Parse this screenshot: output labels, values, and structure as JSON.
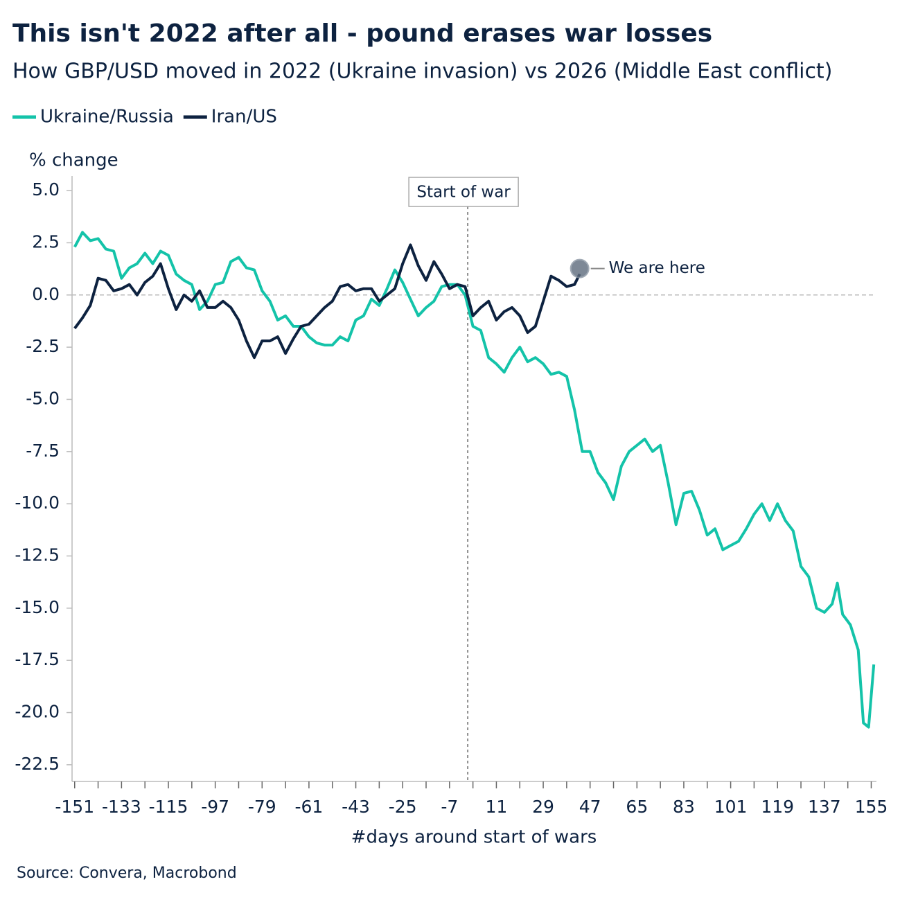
{
  "chart_data": {
    "type": "line",
    "title": "This isn't 2022 after all - pound erases war losses",
    "subtitle": "How GBP/USD moved in 2022 (Ukraine invasion) vs 2026 (Middle East conflict)",
    "y_axis_label": "% change",
    "x_axis_label": "#days around start of wars",
    "source": "Source: Convera, Macrobond",
    "annotations": [
      {
        "text": "Start of war",
        "x": 0
      },
      {
        "text": "We are here",
        "x": 43
      }
    ],
    "xlim": [
      -152,
      157
    ],
    "ylim": [
      -23.3,
      5.7
    ],
    "xticks": [
      -151,
      -133,
      -115,
      -97,
      -79,
      -61,
      -43,
      -25,
      -7,
      11,
      29,
      47,
      65,
      83,
      101,
      119,
      137,
      155
    ],
    "yticks": [
      {
        "value": 5,
        "label": "5.0"
      },
      2.5,
      {
        "value": 0,
        "label": "0.0"
      },
      -2.5,
      {
        "value": -5,
        "label": "-5.0"
      },
      -7.5,
      {
        "value": -10,
        "label": "-10.0"
      },
      -12.5,
      {
        "value": -15,
        "label": "-15.0"
      },
      -17.5,
      {
        "value": -20,
        "label": "-20.0"
      },
      -22.5
    ],
    "zero_line": true,
    "series": [
      {
        "name": "Ukraine/Russia",
        "color": "#14c3a9",
        "x": [
          -151,
          -148,
          -145,
          -142,
          -139,
          -136,
          -133,
          -130,
          -127,
          -124,
          -121,
          -118,
          -115,
          -112,
          -109,
          -106,
          -103,
          -100,
          -97,
          -94,
          -91,
          -88,
          -85,
          -82,
          -79,
          -76,
          -73,
          -70,
          -67,
          -64,
          -61,
          -58,
          -55,
          -52,
          -49,
          -46,
          -43,
          -40,
          -37,
          -34,
          -31,
          -28,
          -25,
          -22,
          -19,
          -16,
          -13,
          -10,
          -7,
          -4,
          -1,
          2,
          5,
          8,
          11,
          14,
          17,
          20,
          23,
          26,
          29,
          32,
          35,
          38,
          41,
          44,
          47,
          50,
          53,
          56,
          59,
          62,
          65,
          68,
          71,
          74,
          77,
          80,
          83,
          86,
          89,
          92,
          95,
          98,
          101,
          104,
          107,
          110,
          113,
          116,
          119,
          122,
          125,
          128,
          131,
          134,
          137,
          140,
          142,
          144,
          147,
          150,
          152,
          154,
          156
        ],
        "values": [
          2.3,
          3.0,
          2.6,
          2.7,
          2.2,
          2.1,
          0.8,
          1.3,
          1.5,
          2.0,
          1.5,
          2.1,
          1.9,
          1.0,
          0.7,
          0.5,
          -0.7,
          -0.3,
          0.5,
          0.6,
          1.6,
          1.8,
          1.3,
          1.2,
          0.2,
          -0.3,
          -1.2,
          -1.0,
          -1.5,
          -1.5,
          -2.0,
          -2.3,
          -2.4,
          -2.4,
          -2.0,
          -2.2,
          -1.2,
          -1.0,
          -0.2,
          -0.5,
          0.3,
          1.2,
          0.6,
          -0.2,
          -1.0,
          -0.6,
          -0.3,
          0.4,
          0.5,
          0.5,
          0.0,
          -1.5,
          -1.7,
          -3.0,
          -3.3,
          -3.7,
          -3.0,
          -2.5,
          -3.2,
          -3.0,
          -3.3,
          -3.8,
          -3.7,
          -3.9,
          -5.5,
          -7.5,
          -7.5,
          -8.5,
          -9.0,
          -9.8,
          -8.2,
          -7.5,
          -7.2,
          -6.9,
          -7.5,
          -7.2,
          -9.0,
          -11.0,
          -9.5,
          -9.4,
          -10.3,
          -11.5,
          -11.2,
          -12.2,
          -12.0,
          -11.8,
          -11.2,
          -10.5,
          -10.0,
          -10.8,
          -10.0,
          -10.8,
          -11.3,
          -13.0,
          -13.5,
          -15.0,
          -15.2,
          -14.8,
          -13.8,
          -15.3,
          -15.8,
          -17.0,
          -20.5,
          -20.7,
          -17.7
        ]
      },
      {
        "name": "Iran/US",
        "color": "#0d2240",
        "x": [
          -151,
          -148,
          -145,
          -142,
          -139,
          -136,
          -133,
          -130,
          -127,
          -124,
          -121,
          -118,
          -115,
          -112,
          -109,
          -106,
          -103,
          -100,
          -97,
          -94,
          -91,
          -88,
          -85,
          -82,
          -79,
          -76,
          -73,
          -70,
          -67,
          -64,
          -61,
          -58,
          -55,
          -52,
          -49,
          -46,
          -43,
          -40,
          -37,
          -34,
          -31,
          -28,
          -25,
          -22,
          -19,
          -16,
          -13,
          -10,
          -7,
          -4,
          -1,
          2,
          5,
          8,
          11,
          14,
          17,
          20,
          23,
          26,
          29,
          32,
          35,
          38,
          41,
          43
        ],
        "values": [
          -1.6,
          -1.1,
          -0.5,
          0.8,
          0.7,
          0.2,
          0.3,
          0.5,
          0.0,
          0.6,
          0.9,
          1.5,
          0.3,
          -0.7,
          0.0,
          -0.3,
          0.2,
          -0.6,
          -0.6,
          -0.3,
          -0.6,
          -1.2,
          -2.2,
          -3.0,
          -2.2,
          -2.2,
          -2.0,
          -2.8,
          -2.1,
          -1.5,
          -1.4,
          -1.0,
          -0.6,
          -0.3,
          0.4,
          0.5,
          0.2,
          0.3,
          0.3,
          -0.3,
          0.0,
          0.3,
          1.5,
          2.4,
          1.4,
          0.7,
          1.6,
          1.0,
          0.3,
          0.5,
          0.4,
          -1.0,
          -0.6,
          -0.3,
          -1.2,
          -0.8,
          -0.6,
          -1.0,
          -1.8,
          -1.5,
          -0.3,
          0.9,
          0.7,
          0.4,
          0.5,
          1.0
        ]
      }
    ]
  }
}
